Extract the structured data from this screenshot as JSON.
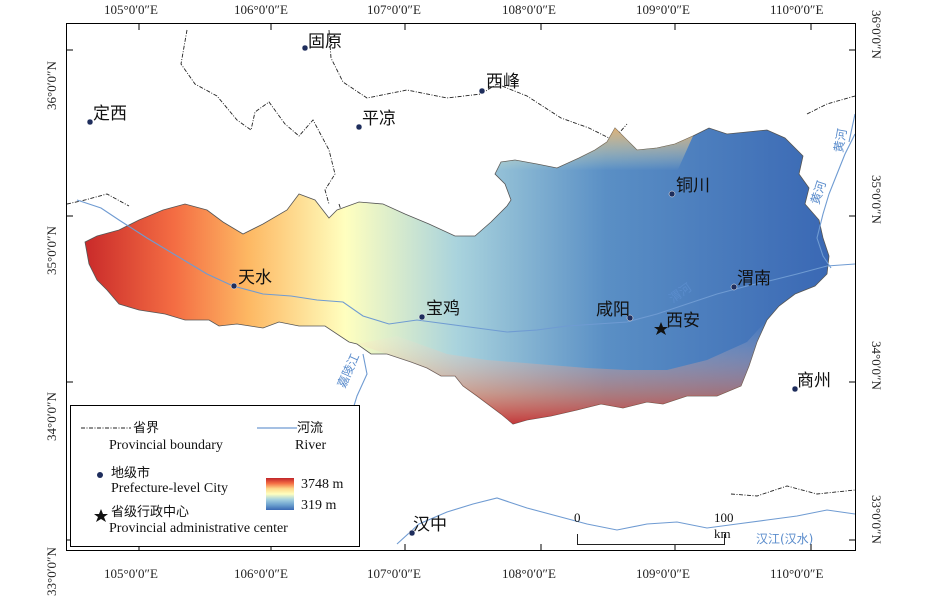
{
  "map": {
    "lon_ticks": [
      "105°0′0″E",
      "106°0′0″E",
      "107°0′0″E",
      "108°0′0″E",
      "109°0′0″E",
      "110°0′0″E"
    ],
    "lat_ticks": [
      "36°0′0″N",
      "35°0′0″N",
      "34°0′0″N",
      "33°0′0″N"
    ],
    "cities": [
      {
        "name": "固原",
        "type": "prefecture"
      },
      {
        "name": "西峰",
        "type": "prefecture"
      },
      {
        "name": "定西",
        "type": "prefecture"
      },
      {
        "name": "平凉",
        "type": "prefecture"
      },
      {
        "name": "铜川",
        "type": "prefecture"
      },
      {
        "name": "天水",
        "type": "prefecture"
      },
      {
        "name": "渭南",
        "type": "prefecture"
      },
      {
        "name": "宝鸡",
        "type": "prefecture"
      },
      {
        "name": "咸阳",
        "type": "prefecture"
      },
      {
        "name": "西安",
        "type": "capital"
      },
      {
        "name": "商州",
        "type": "prefecture"
      },
      {
        "name": "汉中",
        "type": "prefecture"
      }
    ],
    "rivers": [
      "黄河",
      "黄河",
      "渭河",
      "嘉陵江",
      "汉江(汉水)"
    ],
    "colors": {
      "elev_high": "#c0242a",
      "elev_mid": "#ffffbf",
      "elev_low": "#3a68b4",
      "river": "#6f9bd2",
      "boundary": "#222222"
    }
  },
  "legend": {
    "boundary_cn": "省界",
    "boundary_en": "Provincial boundary",
    "river_cn": "河流",
    "river_en": "River",
    "city_cn": "地级市",
    "city_en": "Prefecture-level City",
    "capital_cn": "省级行政中心",
    "capital_en": "Provincial administrative center",
    "elev_max": "3748 m",
    "elev_min": "319 m"
  },
  "scale": {
    "start": "0",
    "end": "100 km"
  }
}
